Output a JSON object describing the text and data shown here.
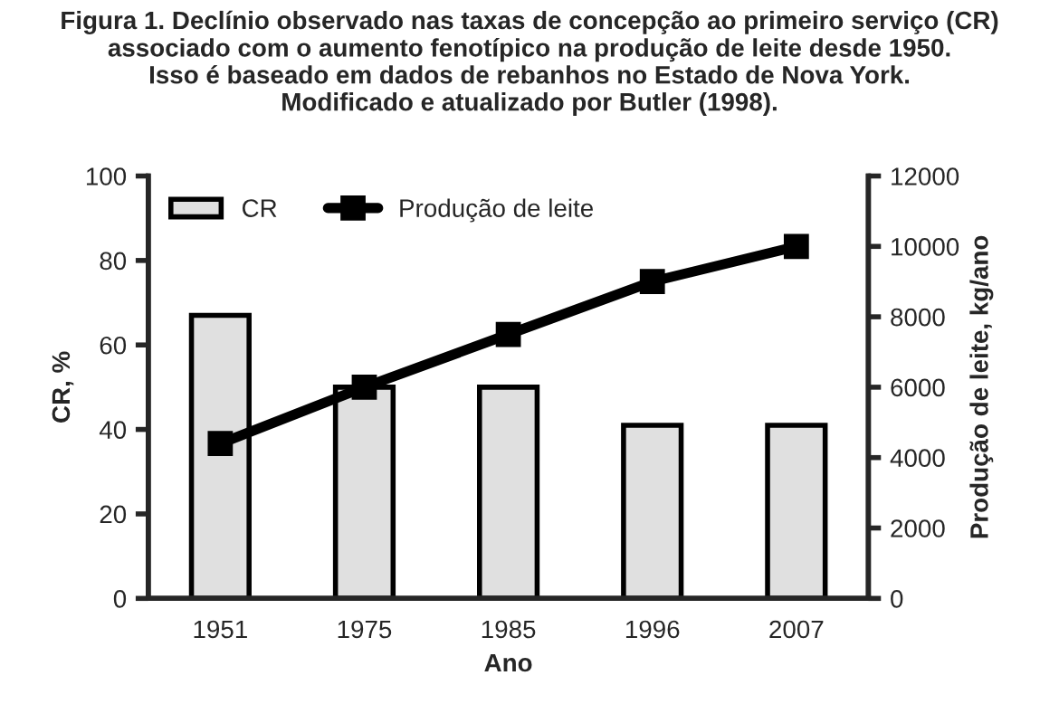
{
  "chart_data": {
    "type": "bar",
    "title": "Figura 1. Declínio observado nas taxas de concepção ao primeiro serviço (CR)\nassociado com o aumento fenotípico na produção de leite desde 1950.\nIsso é baseado em dados de rebanhos no Estado de Nova York.\nModificado e atualizado por Butler (1998).",
    "xlabel": "Ano",
    "ylabel": "CR, %",
    "y2label": "Produção de leite, kg/ano",
    "categories": [
      "1951",
      "1975",
      "1985",
      "1996",
      "2007"
    ],
    "series": [
      {
        "name": "CR",
        "color": "#e0e0e0",
        "values": [
          67,
          50,
          50,
          41,
          41
        ]
      },
      {
        "name": "Produção de leite",
        "type": "line",
        "axis": "y2",
        "color": "#000000",
        "marker": "square",
        "values": [
          4400,
          6000,
          7500,
          9000,
          10000
        ]
      }
    ],
    "ylim": [
      0,
      100
    ],
    "yticks": [
      0,
      20,
      40,
      60,
      80,
      100
    ],
    "y2lim": [
      0,
      12000
    ],
    "y2ticks": [
      0,
      2000,
      4000,
      6000,
      8000,
      10000,
      12000
    ],
    "grid": false,
    "legend": "top left"
  }
}
